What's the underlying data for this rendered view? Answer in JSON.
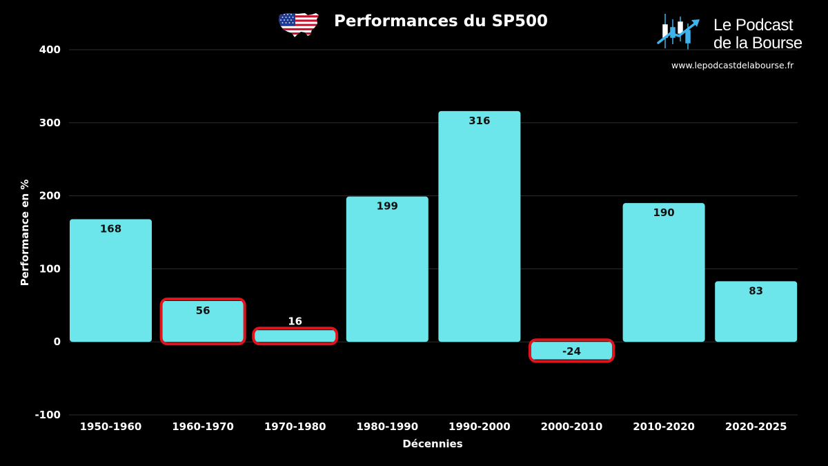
{
  "header": {
    "title": "Performances du SP500",
    "flag_icon": "usa-map-flag-icon"
  },
  "brand": {
    "name": "Le Podcast\nde la Bourse",
    "url": "www.lepodcastdelabourse.fr",
    "icon": "candlestick-chart-arrow-icon",
    "accent": "#3fb3ea"
  },
  "chart_data": {
    "type": "bar",
    "title": "Performances du SP500",
    "xlabel": "Décennies",
    "ylabel": "Performance en %",
    "categories": [
      "1950-1960",
      "1960-1970",
      "1970-1980",
      "1980-1990",
      "1990-2000",
      "2000-2010",
      "2010-2020",
      "2020-2025"
    ],
    "values": [
      168,
      56,
      16,
      199,
      316,
      -24,
      190,
      83
    ],
    "data_labels": [
      "168",
      "56",
      "16",
      "199",
      "316",
      "-24",
      "190",
      "83"
    ],
    "highlighted": [
      "1960-1970",
      "1970-1980",
      "2000-2010"
    ],
    "ylim": [
      -100,
      400
    ],
    "yticks": [
      -100,
      0,
      100,
      200,
      300,
      400
    ],
    "ytick_labels": [
      "-100",
      "0",
      "100",
      "200",
      "300",
      "400"
    ],
    "grid": true,
    "legend": "none",
    "colors": {
      "bar": "#6ce6ea",
      "highlight_outline": "#e0141c",
      "grid": "#2e2e2e",
      "background": "#000000",
      "text": "#ffffff",
      "bar_label": "#111111"
    }
  }
}
